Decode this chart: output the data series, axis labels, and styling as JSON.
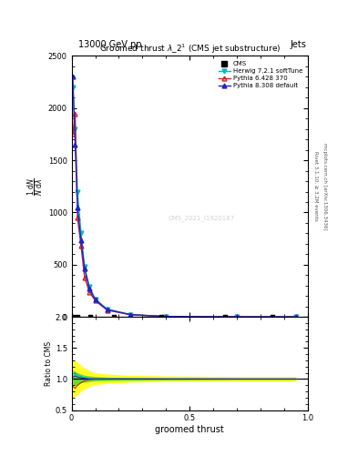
{
  "title_top": "13000 GeV pp",
  "title_right": "Jets",
  "plot_title": "Groomed thrust $\\lambda\\_2^1$ (CMS jet substructure)",
  "xlabel": "groomed thrust",
  "ylabel_ratio": "Ratio to CMS",
  "watermark": "CMS_2021_I1920187",
  "right_label1": "Rivet 3.1.10, ≥ 3.2M events",
  "right_label2": "mcplots.cern.ch [arXiv:1306.3436]",
  "legend_entries": [
    "CMS",
    "Herwig 7.2.1 softTune",
    "Pythia 6.428 370",
    "Pythia 8.308 default"
  ],
  "x_data": [
    0.005,
    0.015,
    0.025,
    0.04,
    0.055,
    0.075,
    0.1,
    0.15,
    0.25,
    0.4,
    0.7,
    0.95
  ],
  "herwig_y": [
    2200,
    1800,
    1200,
    800,
    480,
    290,
    170,
    75,
    22,
    4,
    0.4,
    0.04
  ],
  "pythia6_y": [
    1750,
    1950,
    950,
    680,
    380,
    240,
    155,
    65,
    20,
    3.5,
    0.35,
    0.03
  ],
  "pythia8_y": [
    2300,
    1650,
    1050,
    730,
    460,
    275,
    165,
    70,
    21,
    4.0,
    0.4,
    0.04
  ],
  "cms_x": [
    0.005,
    0.025,
    0.08,
    0.18,
    0.38,
    0.65,
    0.85
  ],
  "cms_y": [
    2,
    2,
    2,
    2,
    2,
    2,
    2
  ],
  "ratio_x": [
    0.005,
    0.015,
    0.025,
    0.04,
    0.055,
    0.075,
    0.1,
    0.15,
    0.25,
    0.4,
    0.7,
    0.95
  ],
  "ratio_herwig": [
    1.08,
    1.1,
    1.06,
    1.04,
    1.02,
    1.01,
    1.0,
    1.0,
    1.0,
    1.0,
    1.0,
    1.0
  ],
  "ratio_pythia6": [
    0.88,
    0.85,
    0.9,
    0.94,
    0.97,
    0.99,
    1.0,
    1.0,
    1.0,
    1.0,
    1.0,
    1.0
  ],
  "ratio_pythia8": [
    1.03,
    1.05,
    1.03,
    1.02,
    1.01,
    1.0,
    1.0,
    1.0,
    1.0,
    1.0,
    1.0,
    1.0
  ],
  "yellow_lo": [
    0.7,
    0.72,
    0.75,
    0.8,
    0.84,
    0.88,
    0.91,
    0.93,
    0.95,
    0.96,
    0.97,
    0.97
  ],
  "yellow_hi": [
    1.32,
    1.3,
    1.27,
    1.22,
    1.18,
    1.14,
    1.1,
    1.08,
    1.06,
    1.05,
    1.04,
    1.04
  ],
  "green_lo": [
    0.88,
    0.9,
    0.92,
    0.94,
    0.95,
    0.96,
    0.97,
    0.975,
    0.98,
    0.985,
    0.99,
    0.99
  ],
  "green_hi": [
    1.14,
    1.12,
    1.1,
    1.08,
    1.06,
    1.05,
    1.04,
    1.03,
    1.025,
    1.02,
    1.015,
    1.015
  ],
  "ylim_main": [
    0,
    2500
  ],
  "ylim_ratio": [
    0.5,
    2.0
  ],
  "xlim": [
    0.0,
    1.0
  ],
  "yticks_main": [
    0,
    500,
    1000,
    1500,
    2000,
    2500
  ],
  "yticks_ratio": [
    0.5,
    1.0,
    1.5,
    2.0
  ],
  "xticks": [
    0,
    0.5,
    1.0
  ],
  "color_herwig": "#00bbcc",
  "color_pythia6": "#cc2222",
  "color_pythia8": "#2222cc",
  "color_cms": "#000000"
}
